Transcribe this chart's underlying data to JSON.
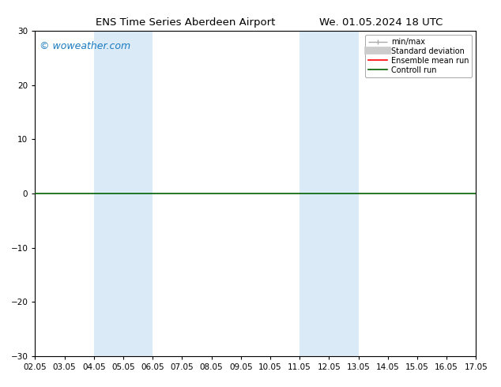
{
  "title_left": "ENS Time Series Aberdeen Airport",
  "title_right": "We. 01.05.2024 18 UTC",
  "ylim": [
    -30,
    30
  ],
  "yticks": [
    -30,
    -20,
    -10,
    0,
    10,
    20,
    30
  ],
  "xtick_labels": [
    "02.05",
    "03.05",
    "04.05",
    "05.05",
    "06.05",
    "07.05",
    "08.05",
    "09.05",
    "10.05",
    "11.05",
    "12.05",
    "13.05",
    "14.05",
    "15.05",
    "16.05",
    "17.05"
  ],
  "xlim": [
    0,
    15
  ],
  "shade_bands": [
    {
      "xmin": 2.0,
      "xmax": 4.0
    },
    {
      "xmin": 9.0,
      "xmax": 11.0
    }
  ],
  "shade_color": "#daeaf7",
  "hline_color": "#006000",
  "hline_lw": 1.2,
  "watermark": "© woweather.com",
  "watermark_color": "#1a7bbf",
  "watermark_fontsize": 9,
  "bg_color": "#ffffff",
  "title_fontsize": 9.5,
  "tick_fontsize": 7.5,
  "legend_fontsize": 7,
  "figsize": [
    6.34,
    4.9
  ],
  "dpi": 100,
  "legend_minmax_color": "#aaaaaa",
  "legend_std_color": "#cccccc",
  "legend_ens_color": "#ff0000",
  "legend_ctrl_color": "#006000"
}
